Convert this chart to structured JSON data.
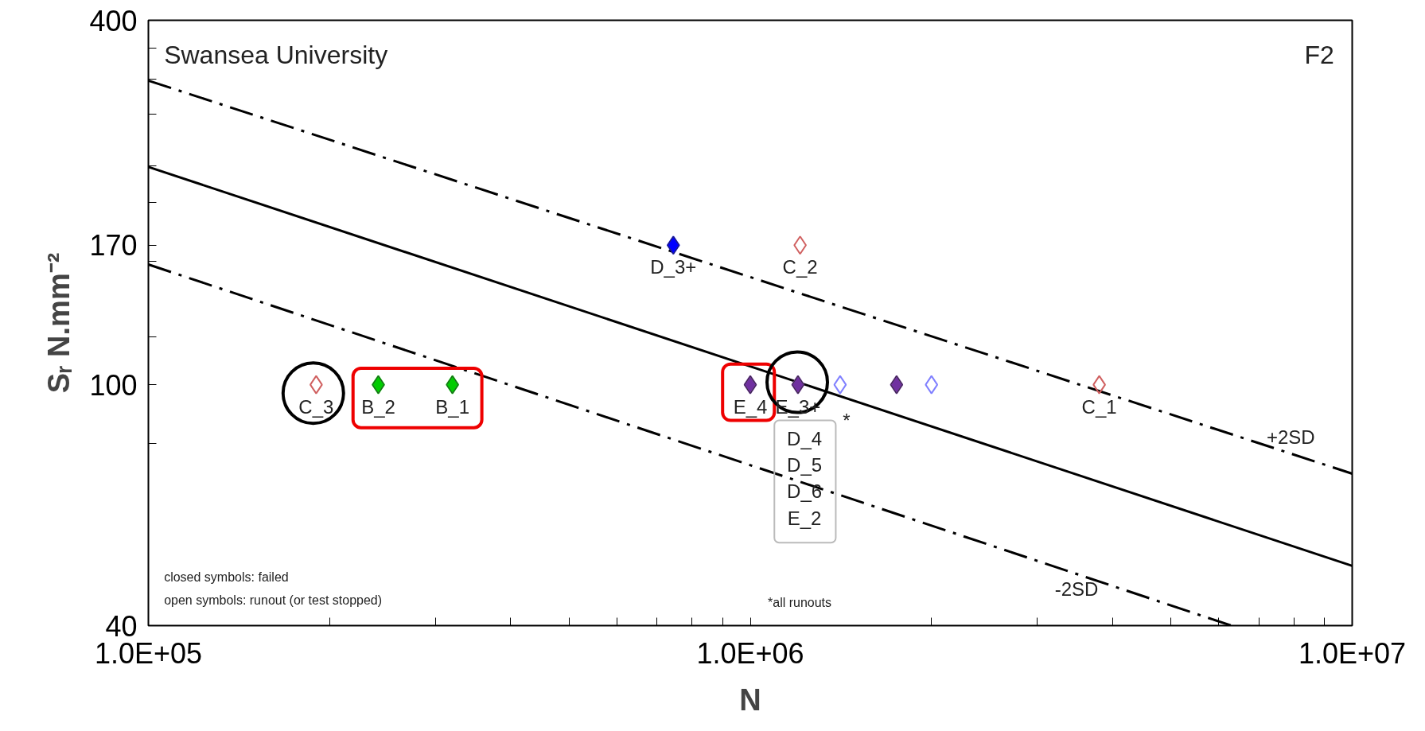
{
  "chart_data": {
    "type": "scatter",
    "xlabel": "N",
    "ylabel": "Sᵣ N.mm⁻²",
    "log": "xy",
    "marker": "diamond",
    "xlim": [
      100000,
      10000000
    ],
    "ylim": [
      40,
      400
    ],
    "xticks": [
      {
        "value": 100000,
        "label": "1.0E+05"
      },
      {
        "value": 200000,
        "label": null
      },
      {
        "value": 300000,
        "label": null
      },
      {
        "value": 400000,
        "label": null
      },
      {
        "value": 500000,
        "label": null
      },
      {
        "value": 600000,
        "label": null
      },
      {
        "value": 700000,
        "label": null
      },
      {
        "value": 800000,
        "label": null
      },
      {
        "value": 900000,
        "label": null
      },
      {
        "value": 1000000,
        "label": "1.0E+06"
      },
      {
        "value": 2000000,
        "label": null
      },
      {
        "value": 3000000,
        "label": null
      },
      {
        "value": 4000000,
        "label": null
      },
      {
        "value": 5000000,
        "label": null
      },
      {
        "value": 6000000,
        "label": null
      },
      {
        "value": 7000000,
        "label": null
      },
      {
        "value": 8000000,
        "label": null
      },
      {
        "value": 9000000,
        "label": null
      },
      {
        "value": 10000000,
        "label": "1.0E+07"
      }
    ],
    "yticks": [
      40,
      {
        "value": 80,
        "label": null
      },
      100,
      {
        "value": 120,
        "label": null
      },
      {
        "value": 160,
        "label": null
      },
      170,
      {
        "value": 200,
        "label": null
      },
      {
        "value": 230,
        "label": null
      },
      {
        "value": 280,
        "label": null
      },
      {
        "value": 320,
        "label": null
      },
      {
        "value": 360,
        "label": null
      },
      400
    ],
    "series": [
      {
        "type": "line",
        "color": "#000000",
        "line_style": "solid",
        "marker": "none",
        "x": [
          100000,
          10000000
        ],
        "values": [
          229,
          50.2
        ]
      },
      {
        "type": "line",
        "color": "#000000",
        "line_style": "dashdot",
        "marker": "none",
        "x": [
          100000,
          10000000
        ],
        "values": [
          318,
          71.3
        ]
      },
      {
        "type": "line",
        "color": "#000000",
        "line_style": "dashdot",
        "marker": "none",
        "x": [
          100000,
          6300000
        ],
        "values": [
          158,
          40
        ]
      },
      {
        "color": "#00cc00",
        "x": [
          241000,
          320000
        ],
        "values": [
          100,
          100
        ]
      },
      {
        "color": "#7030a0",
        "x": [
          1000000,
          1200000,
          1750000
        ],
        "values": [
          100,
          100,
          100
        ]
      },
      {
        "color": "#0000ff",
        "x": [
          745000
        ],
        "values": [
          170
        ]
      },
      {
        "color": "#d06060",
        "x": [
          190000,
          1210000,
          3800000
        ],
        "values": [
          100,
          170,
          100
        ]
      },
      {
        "color": "#8080ff",
        "x": [
          1410000,
          2000000
        ],
        "values": [
          100,
          100
        ]
      }
    ],
    "annotations": [
      "Swansea University",
      "F2",
      "closed symbols: failed",
      "open symbols: runout (or test stopped)",
      "*all runouts",
      "D_4",
      "D_5",
      "D_6",
      "E_2",
      "*",
      "+2SD",
      "-2SD",
      {
        "text": "C_3",
        "x": 190000,
        "y": 100
      },
      {
        "text": "B_2",
        "x": 241000,
        "y": 100
      },
      {
        "text": "B_1",
        "x": 320000,
        "y": 100
      },
      {
        "text": "E_4",
        "x": 1000000,
        "y": 100
      },
      {
        "text": "E_3+",
        "x": 1200000,
        "y": 100
      },
      {
        "text": "D_3+",
        "x": 745000,
        "y": 170
      },
      {
        "text": "C_2",
        "x": 1210000,
        "y": 170
      },
      {
        "text": "C_1",
        "x": 3800000,
        "y": 100
      }
    ]
  }
}
